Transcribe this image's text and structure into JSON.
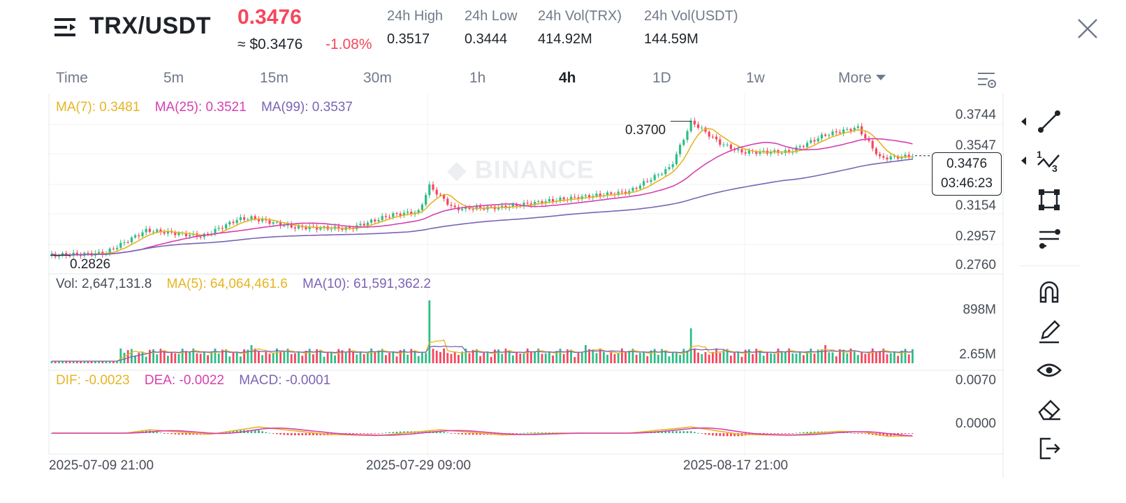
{
  "header": {
    "pair": "TRX/USDT",
    "last_price": "0.3476",
    "usd_price": "≈ $0.3476",
    "change_pct": "-1.08%",
    "stats": [
      {
        "label": "24h High",
        "value": "0.3517"
      },
      {
        "label": "24h Low",
        "value": "0.3444"
      },
      {
        "label": "24h Vol(TRX)",
        "value": "414.92M"
      },
      {
        "label": "24h Vol(USDT)",
        "value": "144.59M"
      }
    ]
  },
  "intervals": [
    "Time",
    "5m",
    "15m",
    "30m",
    "1h",
    "4h",
    "1D",
    "1w",
    "More"
  ],
  "active_interval": "4h",
  "main_chart": {
    "legend": {
      "ma7": "MA(7): 0.3481",
      "ma25": "MA(25): 0.3521",
      "ma99": "MA(99): 0.3537"
    },
    "y_ticks": [
      "0.3744",
      "0.3547",
      "0.3154",
      "0.2957",
      "0.2760"
    ],
    "high_marker": "0.3700",
    "low_marker": "0.2826",
    "current_price": "0.3476",
    "countdown": "03:46:23",
    "watermark": "BINANCE"
  },
  "volume_chart": {
    "legend": {
      "vol": "Vol: 2,647,131.8",
      "ma5": "MA(5): 64,064,461.6",
      "ma10": "MA(10): 61,591,362.2"
    },
    "y_ticks": [
      "898M",
      "2.65M"
    ]
  },
  "macd_chart": {
    "legend": {
      "dif": "DIF: -0.0023",
      "dea": "DEA: -0.0022",
      "macd": "MACD: -0.0001"
    },
    "y_ticks": [
      "0.0070",
      "0.0000"
    ]
  },
  "time_axis": [
    "2025-07-09 21:00",
    "2025-07-29 09:00",
    "2025-08-17 21:00"
  ],
  "colors": {
    "up": "#2ebd85",
    "down": "#f6465d",
    "ma7": "#e6b422",
    "ma25": "#d63fb0",
    "ma99": "#7b64b4"
  },
  "toolbar": {
    "tools": [
      "trend-line-icon",
      "fibonacci-icon",
      "shape-icon",
      "indicator-lines-icon",
      "magnet-icon",
      "pencil-icon",
      "eye-icon",
      "eraser-icon",
      "exit-icon"
    ]
  }
}
